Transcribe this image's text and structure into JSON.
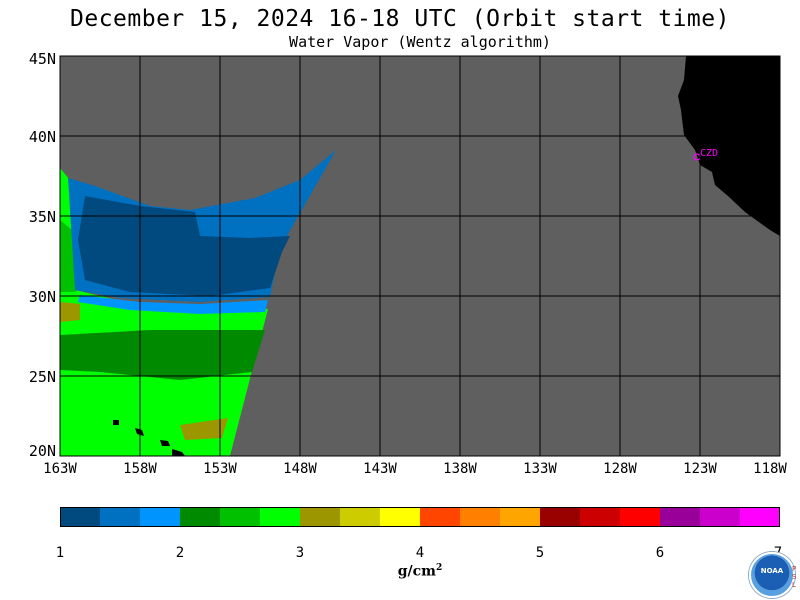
{
  "header": {
    "title": "December 15, 2024  16-18 UTC  (Orbit start time)",
    "subtitle": "Water Vapor (Wentz algorithm)"
  },
  "map": {
    "lat_labels": [
      "45N",
      "40N",
      "35N",
      "30N",
      "25N",
      "20N"
    ],
    "lon_labels": [
      "163W",
      "158W",
      "153W",
      "148W",
      "143W",
      "138W",
      "133W",
      "128W",
      "123W",
      "118W"
    ],
    "station_label": "CZD",
    "colors": {
      "no_data": "#5f5f5f",
      "land": "#000000",
      "grid": "#000000",
      "station": "#ff00ff"
    }
  },
  "colorbar": {
    "ticks": [
      "1",
      "2",
      "3",
      "4",
      "5",
      "6",
      "7"
    ],
    "units": "g/cm",
    "units_exp": "2",
    "colors": [
      "#004a80",
      "#0070c0",
      "#0094ff",
      "#008a00",
      "#00c000",
      "#00ff00",
      "#9c9600",
      "#cccc00",
      "#ffff00",
      "#ff4500",
      "#ff7f00",
      "#ffa500",
      "#990000",
      "#cc0000",
      "#ff0000",
      "#990099",
      "#cc00cc",
      "#ff00ff"
    ]
  },
  "logo": {
    "text": "NOAA",
    "side_text": "PSL"
  }
}
